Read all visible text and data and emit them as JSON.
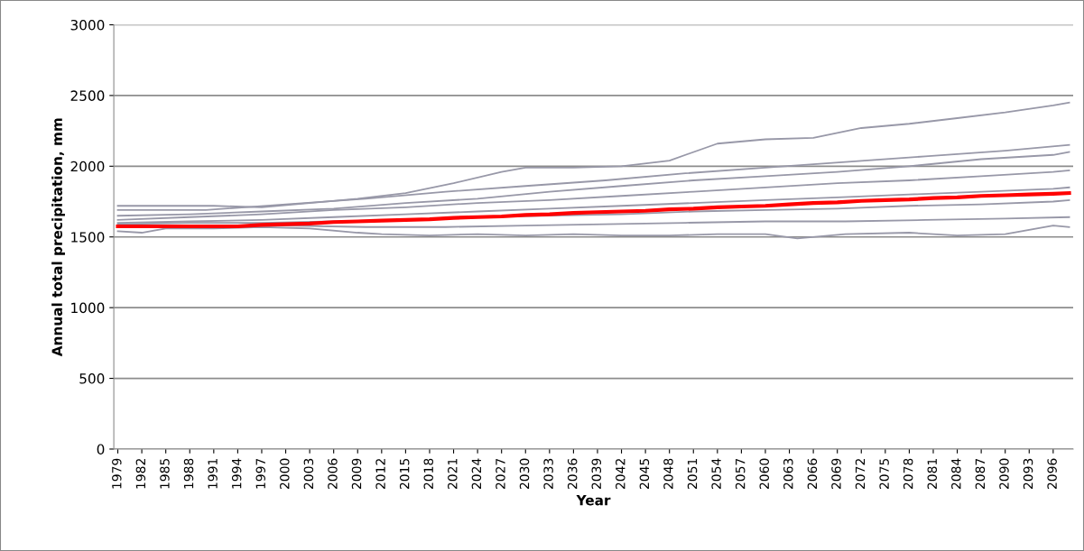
{
  "chart_data": {
    "type": "line",
    "xlabel": "Year",
    "ylabel": "Annual total precipitation, mm",
    "xlim": [
      1978.5,
      2098.5
    ],
    "ylim": [
      0,
      3000
    ],
    "yticks": [
      0,
      500,
      1000,
      1500,
      2000,
      2500,
      3000
    ],
    "xticks": [
      1979,
      1982,
      1985,
      1988,
      1991,
      1994,
      1997,
      2000,
      2003,
      2006,
      2009,
      2012,
      2015,
      2018,
      2021,
      2024,
      2027,
      2030,
      2033,
      2036,
      2039,
      2042,
      2045,
      2048,
      2051,
      2054,
      2057,
      2060,
      2063,
      2066,
      2069,
      2072,
      2075,
      2078,
      2081,
      2084,
      2087,
      2090,
      2093,
      2096
    ],
    "grid": "y",
    "legend": false,
    "marker": "none",
    "line_style": "solid",
    "series": [
      {
        "color": "#9898a8",
        "x": [
          1979,
          1985,
          1991,
          1997,
          2003,
          2009,
          2015,
          2021,
          2027,
          2030,
          2036,
          2042,
          2048,
          2054,
          2060,
          2066,
          2072,
          2078,
          2084,
          2090,
          2096,
          2098
        ],
        "values": [
          1720,
          1720,
          1720,
          1710,
          1740,
          1770,
          1810,
          1880,
          1960,
          1990,
          1990,
          2000,
          2040,
          2160,
          2190,
          2200,
          2270,
          2300,
          2340,
          2380,
          2430,
          2450
        ]
      },
      {
        "color": "#9898a8",
        "x": [
          1979,
          1982,
          1985,
          1991,
          1997,
          2003,
          2009,
          2012,
          2018,
          2024,
          2030,
          2036,
          2042,
          2048,
          2054,
          2060,
          2064,
          2070,
          2078,
          2084,
          2090,
          2096,
          2098
        ],
        "values": [
          1540,
          1530,
          1560,
          1560,
          1570,
          1560,
          1530,
          1520,
          1510,
          1520,
          1510,
          1520,
          1510,
          1510,
          1520,
          1520,
          1490,
          1520,
          1530,
          1510,
          1520,
          1580,
          1570
        ]
      },
      {
        "color": "#9898a8",
        "x": [
          1979,
          1990,
          2000,
          2010,
          2020,
          2030,
          2040,
          2050,
          2060,
          2070,
          2080,
          2090,
          2098
        ],
        "values": [
          1690,
          1690,
          1730,
          1770,
          1820,
          1860,
          1900,
          1950,
          1990,
          2030,
          2070,
          2110,
          2150
        ]
      },
      {
        "color": "#9898a8",
        "x": [
          1979,
          1990,
          2000,
          2010,
          2020,
          2030,
          2040,
          2050,
          2060,
          2070,
          2080,
          2090,
          2098
        ],
        "values": [
          1570,
          1580,
          1580,
          1570,
          1570,
          1580,
          1590,
          1600,
          1610,
          1610,
          1620,
          1630,
          1640
        ]
      },
      {
        "color": "#9898a8",
        "x": [
          1979,
          1988,
          1997,
          2006,
          2015,
          2024,
          2033,
          2042,
          2051,
          2060,
          2069,
          2078,
          2087,
          2096,
          2098
        ],
        "values": [
          1650,
          1660,
          1680,
          1700,
          1740,
          1770,
          1820,
          1860,
          1900,
          1930,
          1960,
          2000,
          2050,
          2080,
          2100
        ]
      },
      {
        "color": "#9898a8",
        "x": [
          1979,
          1988,
          1997,
          2006,
          2015,
          2024,
          2033,
          2042,
          2051,
          2060,
          2069,
          2078,
          2087,
          2096,
          2098
        ],
        "values": [
          1600,
          1610,
          1620,
          1640,
          1660,
          1680,
          1700,
          1720,
          1740,
          1760,
          1780,
          1800,
          1820,
          1840,
          1850
        ]
      },
      {
        "color": "#9898a8",
        "x": [
          1979,
          1988,
          1997,
          2006,
          2015,
          2024,
          2033,
          2042,
          2051,
          2060,
          2069,
          2078,
          2087,
          2096,
          2098
        ],
        "values": [
          1620,
          1640,
          1660,
          1690,
          1710,
          1740,
          1760,
          1790,
          1820,
          1850,
          1880,
          1900,
          1930,
          1960,
          1970
        ]
      },
      {
        "color": "#9898a8",
        "x": [
          1979,
          1988,
          1997,
          2006,
          2015,
          2024,
          2033,
          2042,
          2051,
          2060,
          2069,
          2078,
          2087,
          2096,
          2098
        ],
        "values": [
          1590,
          1600,
          1600,
          1610,
          1620,
          1640,
          1650,
          1660,
          1680,
          1690,
          1700,
          1720,
          1730,
          1750,
          1760
        ]
      },
      {
        "color": "#ff0000",
        "x": [
          1979,
          1994,
          1997,
          2000,
          2003,
          2006,
          2009,
          2012,
          2015,
          2018,
          2021,
          2024,
          2027,
          2030,
          2033,
          2036,
          2039,
          2042,
          2045,
          2048,
          2051,
          2054,
          2057,
          2060,
          2063,
          2066,
          2069,
          2072,
          2075,
          2078,
          2081,
          2084,
          2087,
          2090,
          2093,
          2096,
          2098
        ],
        "values": [
          1575,
          1575,
          1585,
          1590,
          1595,
          1605,
          1610,
          1615,
          1620,
          1625,
          1635,
          1640,
          1645,
          1655,
          1660,
          1670,
          1675,
          1680,
          1685,
          1695,
          1700,
          1710,
          1715,
          1720,
          1730,
          1740,
          1745,
          1755,
          1760,
          1765,
          1775,
          1780,
          1790,
          1795,
          1800,
          1805,
          1810
        ]
      }
    ]
  }
}
